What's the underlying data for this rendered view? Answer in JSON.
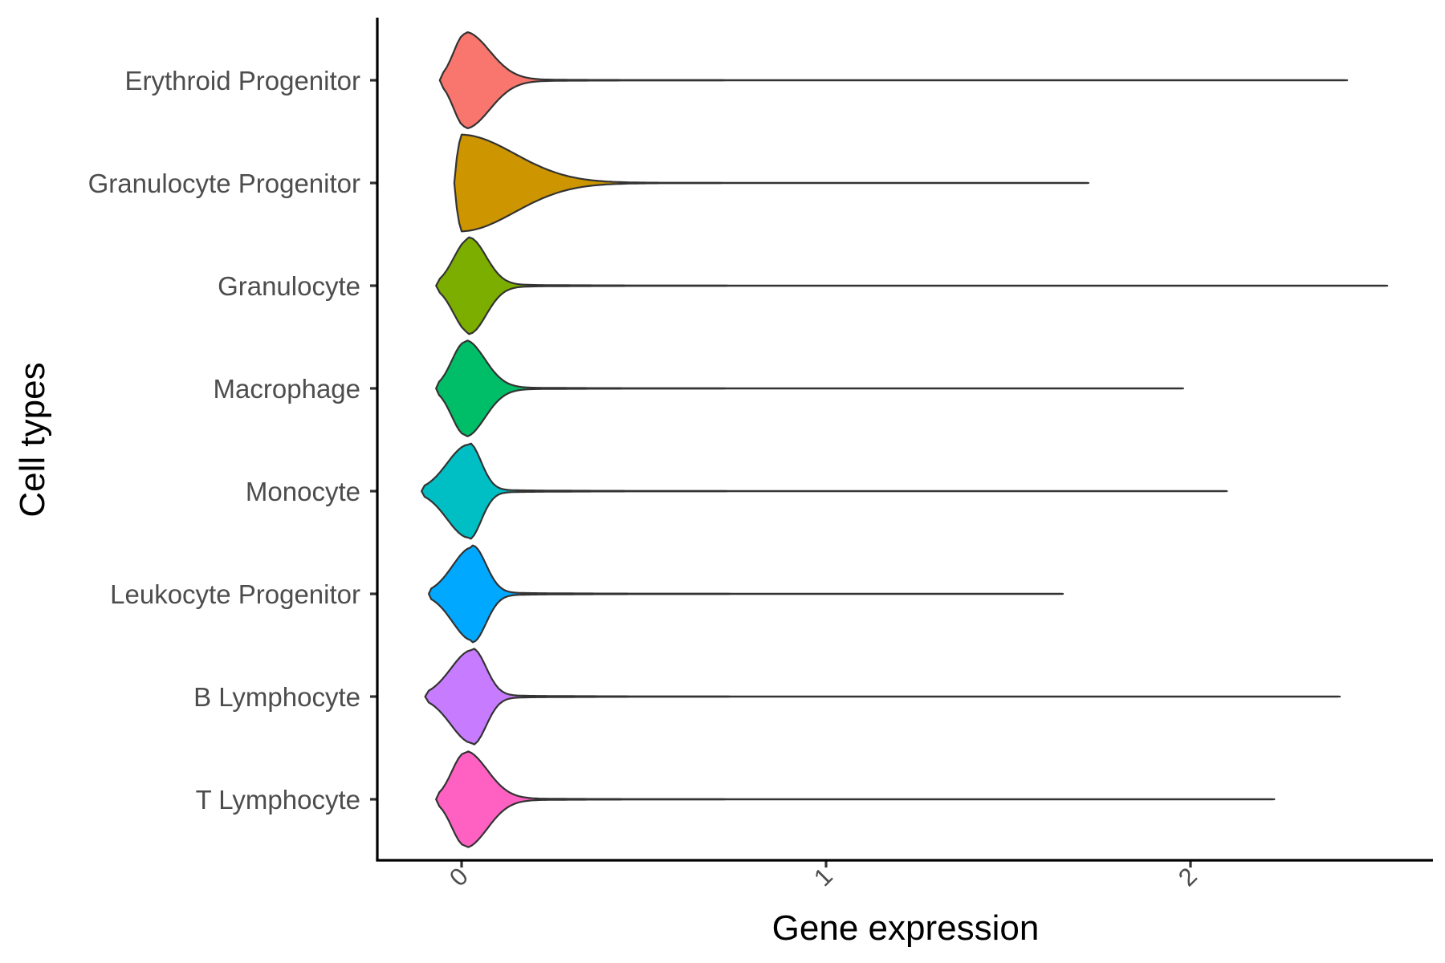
{
  "chart_data": {
    "type": "violin",
    "title": "",
    "xlabel": "Gene expression",
    "ylabel": "Cell types",
    "xlim": [
      -0.23,
      2.65
    ],
    "x_ticks": [
      "0",
      "1",
      "2"
    ],
    "categories": [
      "T Lymphocyte",
      "B Lymphocyte",
      "Leukocyte Progenitor",
      "Monocyte",
      "Macrophage",
      "Granulocyte",
      "Granulocyte Progenitor",
      "Erythroid Progenitor"
    ],
    "series": [
      {
        "category": "T Lymphocyte",
        "min": -0.07,
        "max": 2.23,
        "mode": 0.01,
        "peak_half_width": 0.18,
        "color": "#FF61C3"
      },
      {
        "category": "B Lymphocyte",
        "min": -0.1,
        "max": 2.41,
        "mode": 0.03,
        "peak_half_width": 0.11,
        "color": "#C77CFF"
      },
      {
        "category": "Leukocyte Progenitor",
        "min": -0.09,
        "max": 1.65,
        "mode": 0.03,
        "peak_half_width": 0.11,
        "color": "#00A9FF"
      },
      {
        "category": "Monocyte",
        "min": -0.11,
        "max": 2.1,
        "mode": 0.02,
        "peak_half_width": 0.1,
        "color": "#00BFC4"
      },
      {
        "category": "Macrophage",
        "min": -0.07,
        "max": 1.98,
        "mode": 0.01,
        "peak_half_width": 0.16,
        "color": "#00BE67"
      },
      {
        "category": "Granulocyte",
        "min": -0.07,
        "max": 2.54,
        "mode": 0.02,
        "peak_half_width": 0.14,
        "color": "#7CAE00"
      },
      {
        "category": "Granulocyte Progenitor",
        "min": -0.02,
        "max": 1.72,
        "mode": 0.0,
        "peak_half_width": 0.44,
        "color": "#CD9600"
      },
      {
        "category": "Erythroid Progenitor",
        "min": -0.06,
        "max": 2.43,
        "mode": 0.01,
        "peak_half_width": 0.2,
        "color": "#F8766D"
      }
    ],
    "grid": false,
    "legend": "none"
  }
}
